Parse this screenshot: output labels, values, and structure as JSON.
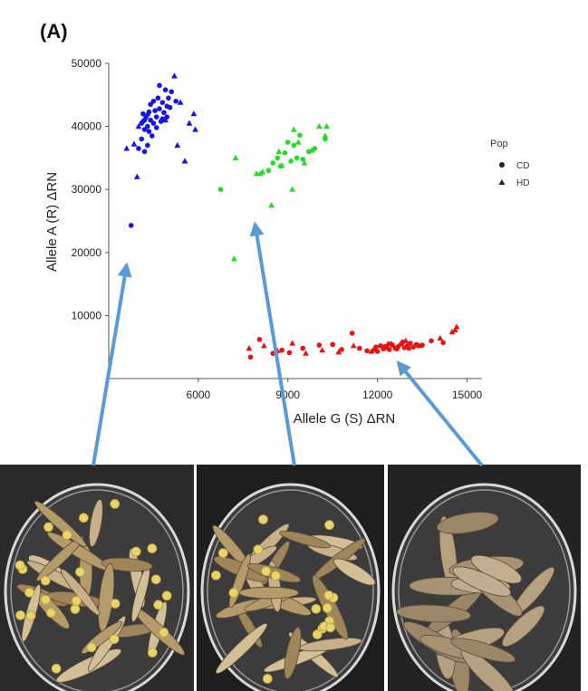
{
  "figure": {
    "panel_label": "(A)"
  },
  "chart_data": {
    "type": "scatter",
    "xlabel": "Allele G (S) ΔRN",
    "ylabel": "Allele A (R) ΔRN",
    "xlim": [
      3000,
      15500
    ],
    "ylim": [
      0,
      50000
    ],
    "xticks": [
      6000,
      9000,
      12000,
      15000
    ],
    "xtick_labels": [
      "6000",
      "9000",
      "12000",
      "15000"
    ],
    "yticks": [
      10000,
      20000,
      30000,
      40000,
      50000
    ],
    "ytick_labels": [
      "10000",
      "20000",
      "30000",
      "40000",
      "50000"
    ],
    "grid": false,
    "legend": {
      "title": "Pop",
      "placement": "right",
      "entries": [
        {
          "label": "CD",
          "marker": "circle"
        },
        {
          "label": "HD",
          "marker": "triangle"
        }
      ]
    },
    "colors": {
      "blue": "#1515e6",
      "green": "#22dd22",
      "red": "#e61515"
    },
    "series": [
      {
        "color": "blue",
        "marker": "circle",
        "points": [
          [
            3750,
            24300
          ],
          [
            4000,
            36500
          ],
          [
            4100,
            38000
          ],
          [
            4100,
            40500
          ],
          [
            4150,
            42000
          ],
          [
            4200,
            36000
          ],
          [
            4200,
            39500
          ],
          [
            4250,
            41500
          ],
          [
            4300,
            37000
          ],
          [
            4300,
            40000
          ],
          [
            4350,
            42300
          ],
          [
            4400,
            41000
          ],
          [
            4400,
            43500
          ],
          [
            4450,
            38500
          ],
          [
            4500,
            40500
          ],
          [
            4550,
            42500
          ],
          [
            4600,
            39800
          ],
          [
            4600,
            41500
          ],
          [
            4650,
            44500
          ],
          [
            4700,
            42800
          ],
          [
            4700,
            46500
          ],
          [
            4750,
            40800
          ],
          [
            4800,
            43800
          ],
          [
            4850,
            42200
          ],
          [
            4900,
            45800
          ],
          [
            4950,
            41500
          ],
          [
            5000,
            44500
          ],
          [
            5050,
            43000
          ],
          [
            5100,
            45500
          ],
          [
            5250,
            44000
          ],
          [
            4200,
            41000
          ],
          [
            4350,
            39200
          ],
          [
            4500,
            44000
          ],
          [
            4800,
            41200
          ],
          [
            4150,
            40800
          ],
          [
            4950,
            43200
          ]
        ]
      },
      {
        "color": "blue",
        "marker": "triangle",
        "points": [
          [
            3600,
            36500
          ],
          [
            3850,
            37200
          ],
          [
            3950,
            32000
          ],
          [
            4000,
            40000
          ],
          [
            4300,
            42000
          ],
          [
            4900,
            41000
          ],
          [
            5200,
            48000
          ],
          [
            5300,
            37000
          ],
          [
            5400,
            43800
          ],
          [
            5550,
            34500
          ],
          [
            5700,
            40500
          ],
          [
            5850,
            42000
          ],
          [
            5900,
            39500
          ]
        ]
      },
      {
        "color": "green",
        "marker": "circle",
        "points": [
          [
            6750,
            30000
          ],
          [
            8100,
            32500
          ],
          [
            8350,
            33000
          ],
          [
            8500,
            34200
          ],
          [
            8650,
            35000
          ],
          [
            8750,
            33700
          ],
          [
            8900,
            35800
          ],
          [
            9000,
            37500
          ],
          [
            9100,
            34500
          ],
          [
            9200,
            37000
          ],
          [
            9300,
            35000
          ],
          [
            9500,
            34800
          ],
          [
            9700,
            36000
          ],
          [
            9900,
            36500
          ],
          [
            10250,
            38000
          ],
          [
            9400,
            38600
          ]
        ]
      },
      {
        "color": "green",
        "marker": "triangle",
        "points": [
          [
            7250,
            35000
          ],
          [
            7200,
            19000
          ],
          [
            7950,
            32500
          ],
          [
            8150,
            32800
          ],
          [
            8450,
            27500
          ],
          [
            8700,
            36000
          ],
          [
            8800,
            33800
          ],
          [
            9150,
            30000
          ],
          [
            9200,
            39500
          ],
          [
            9350,
            37500
          ],
          [
            9550,
            34200
          ],
          [
            9800,
            36200
          ],
          [
            10050,
            40000
          ],
          [
            10300,
            40000
          ],
          [
            10250,
            38500
          ]
        ]
      },
      {
        "color": "red",
        "marker": "circle",
        "points": [
          [
            7750,
            3400
          ],
          [
            8050,
            6200
          ],
          [
            8500,
            4000
          ],
          [
            8800,
            4500
          ],
          [
            9050,
            4100
          ],
          [
            9500,
            4800
          ],
          [
            10050,
            5300
          ],
          [
            10500,
            5400
          ],
          [
            10800,
            4600
          ],
          [
            11150,
            7200
          ],
          [
            11400,
            4800
          ],
          [
            11650,
            4400
          ],
          [
            11900,
            4600
          ],
          [
            12000,
            4300
          ],
          [
            12100,
            5200
          ],
          [
            12200,
            4700
          ],
          [
            12300,
            4900
          ],
          [
            12400,
            4600
          ],
          [
            12500,
            5300
          ],
          [
            12600,
            4800
          ],
          [
            12700,
            5100
          ],
          [
            12800,
            5500
          ],
          [
            12900,
            4900
          ],
          [
            13000,
            5200
          ],
          [
            13100,
            5600
          ],
          [
            13200,
            5000
          ],
          [
            13300,
            5400
          ],
          [
            13500,
            5300
          ],
          [
            13800,
            6000
          ],
          [
            14200,
            5700
          ],
          [
            11950,
            5000
          ],
          [
            12250,
            5100
          ],
          [
            12650,
            4700
          ],
          [
            13050,
            4800
          ],
          [
            12450,
            5500
          ],
          [
            12850,
            5800
          ]
        ]
      },
      {
        "color": "red",
        "marker": "triangle",
        "points": [
          [
            7700,
            4800
          ],
          [
            8200,
            5200
          ],
          [
            8650,
            4400
          ],
          [
            9150,
            5600
          ],
          [
            9600,
            4000
          ],
          [
            10150,
            4500
          ],
          [
            10700,
            4200
          ],
          [
            11200,
            5200
          ],
          [
            11800,
            4300
          ],
          [
            12350,
            5500
          ],
          [
            12950,
            6000
          ],
          [
            13400,
            5200
          ],
          [
            14100,
            6400
          ],
          [
            14500,
            7400
          ],
          [
            14650,
            8200
          ],
          [
            14600,
            7700
          ]
        ]
      }
    ],
    "annotations": [
      {
        "type": "arrow",
        "color": "#5b9bd5",
        "description": "links pod photo 1 to blue cluster"
      },
      {
        "type": "arrow",
        "color": "#5b9bd5",
        "description": "links pod photo 2 to green cluster"
      },
      {
        "type": "arrow",
        "color": "#5b9bd5",
        "description": "links pod photo 3 to red cluster"
      }
    ]
  },
  "photos": [
    {
      "pod_count": 22,
      "seed_count": 26,
      "shattered": true
    },
    {
      "pod_count": 26,
      "seed_count": 18,
      "shattered": true
    },
    {
      "pod_count": 19,
      "seed_count": 0,
      "shattered": false
    }
  ]
}
